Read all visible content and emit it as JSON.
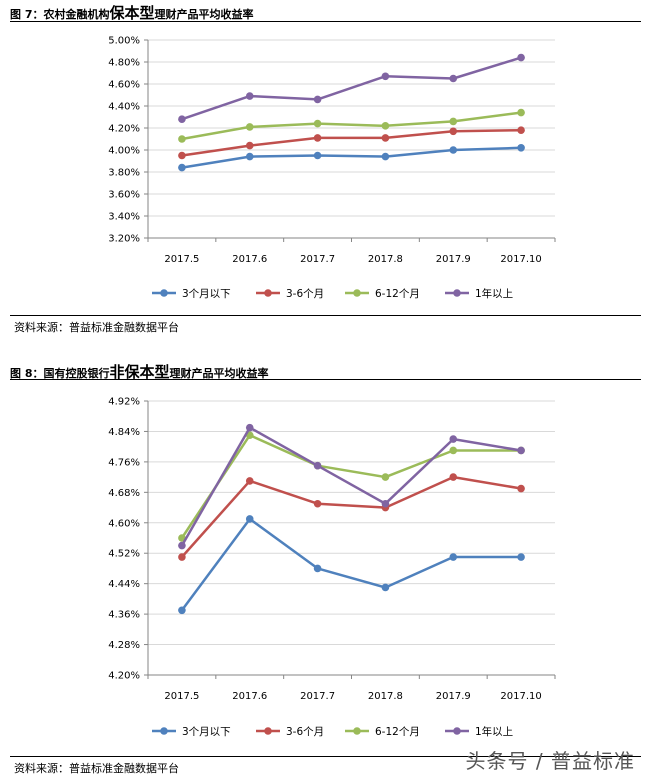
{
  "figures": [
    {
      "title_prefix": "图 7：农村金融机构",
      "title_emphasis": "保本型",
      "title_suffix": "理财产品平均收益率",
      "source": "资料来源：普益标准金融数据平台"
    },
    {
      "title_prefix": "图 8：国有控股银行",
      "title_emphasis": "非保本型",
      "title_suffix": "理财产品平均收益率",
      "source": "资料来源：普益标准金融数据平台"
    }
  ],
  "watermark": "头条号 / 普益标准",
  "colors": {
    "3m": "#4f81bd",
    "3to6": "#c0504d",
    "6to12": "#9bbb59",
    "1y": "#8064a2",
    "grid": "#d9d9d9",
    "axis": "#868686"
  },
  "chart_data": [
    {
      "type": "line",
      "categories": [
        "2017.5",
        "2017.6",
        "2017.7",
        "2017.8",
        "2017.9",
        "2017.10"
      ],
      "ylim": [
        3.2,
        5.0
      ],
      "yticks": [
        "3.20%",
        "3.40%",
        "3.60%",
        "3.80%",
        "4.00%",
        "4.20%",
        "4.40%",
        "4.60%",
        "4.80%",
        "5.00%"
      ],
      "grid": true,
      "legend": "bottom",
      "series": [
        {
          "name": "3个月以下",
          "color": "#4f81bd",
          "values": [
            3.84,
            3.94,
            3.95,
            3.94,
            4.0,
            4.02
          ]
        },
        {
          "name": "3-6个月",
          "color": "#c0504d",
          "values": [
            3.95,
            4.04,
            4.11,
            4.11,
            4.17,
            4.18
          ]
        },
        {
          "name": "6-12个月",
          "color": "#9bbb59",
          "values": [
            4.1,
            4.21,
            4.24,
            4.22,
            4.26,
            4.34
          ]
        },
        {
          "name": "1年以上",
          "color": "#8064a2",
          "values": [
            4.28,
            4.49,
            4.46,
            4.67,
            4.65,
            4.84
          ]
        }
      ]
    },
    {
      "type": "line",
      "categories": [
        "2017.5",
        "2017.6",
        "2017.7",
        "2017.8",
        "2017.9",
        "2017.10"
      ],
      "ylim": [
        4.2,
        4.92
      ],
      "yticks": [
        "4.20%",
        "4.28%",
        "4.36%",
        "4.44%",
        "4.52%",
        "4.60%",
        "4.68%",
        "4.76%",
        "4.84%",
        "4.92%"
      ],
      "grid": true,
      "legend": "bottom",
      "series": [
        {
          "name": "3个月以下",
          "color": "#4f81bd",
          "values": [
            4.37,
            4.61,
            4.48,
            4.43,
            4.51,
            4.51
          ]
        },
        {
          "name": "3-6个月",
          "color": "#c0504d",
          "values": [
            4.51,
            4.71,
            4.65,
            4.64,
            4.72,
            4.69
          ]
        },
        {
          "name": "6-12个月",
          "color": "#9bbb59",
          "values": [
            4.56,
            4.83,
            4.75,
            4.72,
            4.79,
            4.79
          ]
        },
        {
          "name": "1年以上",
          "color": "#8064a2",
          "values": [
            4.54,
            4.85,
            4.75,
            4.65,
            4.82,
            4.79
          ]
        }
      ]
    }
  ]
}
